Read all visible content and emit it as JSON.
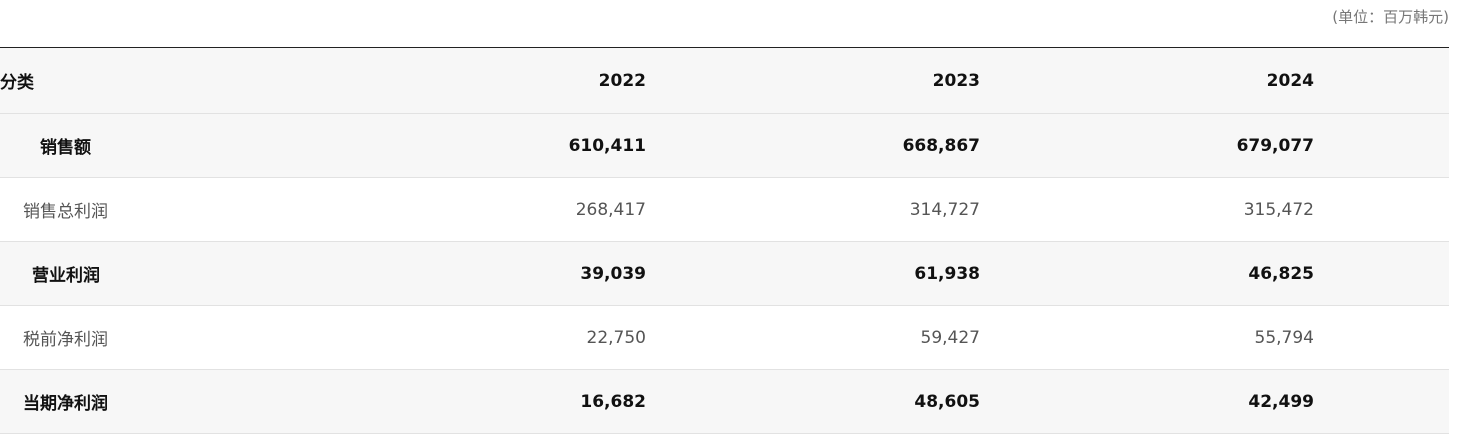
{
  "unit_note": "(单位：百万韩元)",
  "table": {
    "header": {
      "category": "分类",
      "years": [
        "2022",
        "2023",
        "2024"
      ]
    },
    "rows": [
      {
        "label": "销售额",
        "values": [
          "610,411",
          "668,867",
          "679,077"
        ],
        "bold": true
      },
      {
        "label": "销售总利润",
        "values": [
          "268,417",
          "314,727",
          "315,472"
        ],
        "bold": false
      },
      {
        "label": "营业利润",
        "values": [
          "39,039",
          "61,938",
          "46,825"
        ],
        "bold": true
      },
      {
        "label": "税前净利润",
        "values": [
          "22,750",
          "59,427",
          "55,794"
        ],
        "bold": false
      },
      {
        "label": "当期净利润",
        "values": [
          "16,682",
          "48,605",
          "42,499"
        ],
        "bold": true
      }
    ]
  }
}
